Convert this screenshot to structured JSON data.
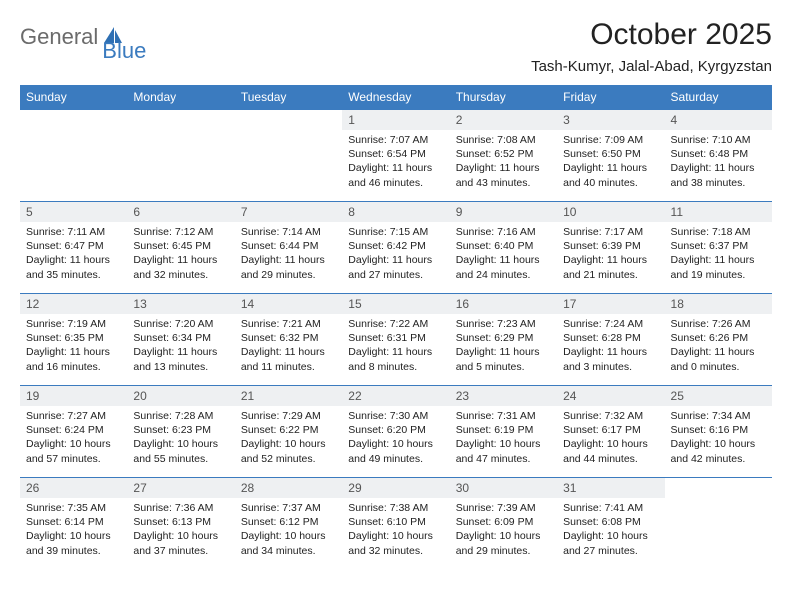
{
  "logo": {
    "word1": "General",
    "word2": "Blue"
  },
  "title": "October 2025",
  "location": "Tash-Kumyr, Jalal-Abad, Kyrgyzstan",
  "colors": {
    "header_bg": "#3b7bbf",
    "header_fg": "#ffffff",
    "daynum_bg": "#eef0f2",
    "daynum_fg": "#555555",
    "row_border": "#3b7bbf",
    "logo_gray": "#6b6b6b",
    "logo_blue": "#3b7bbf",
    "text": "#222222",
    "background": "#ffffff"
  },
  "layout": {
    "columns": 7,
    "header_fontsize": 12,
    "body_fontsize": 10.5,
    "title_fontsize": 30,
    "location_fontsize": 15
  },
  "weekdays": [
    "Sunday",
    "Monday",
    "Tuesday",
    "Wednesday",
    "Thursday",
    "Friday",
    "Saturday"
  ],
  "weeks": [
    [
      null,
      null,
      null,
      {
        "n": "1",
        "sunrise": "7:07 AM",
        "sunset": "6:54 PM",
        "daylight": "11 hours and 46 minutes."
      },
      {
        "n": "2",
        "sunrise": "7:08 AM",
        "sunset": "6:52 PM",
        "daylight": "11 hours and 43 minutes."
      },
      {
        "n": "3",
        "sunrise": "7:09 AM",
        "sunset": "6:50 PM",
        "daylight": "11 hours and 40 minutes."
      },
      {
        "n": "4",
        "sunrise": "7:10 AM",
        "sunset": "6:48 PM",
        "daylight": "11 hours and 38 minutes."
      }
    ],
    [
      {
        "n": "5",
        "sunrise": "7:11 AM",
        "sunset": "6:47 PM",
        "daylight": "11 hours and 35 minutes."
      },
      {
        "n": "6",
        "sunrise": "7:12 AM",
        "sunset": "6:45 PM",
        "daylight": "11 hours and 32 minutes."
      },
      {
        "n": "7",
        "sunrise": "7:14 AM",
        "sunset": "6:44 PM",
        "daylight": "11 hours and 29 minutes."
      },
      {
        "n": "8",
        "sunrise": "7:15 AM",
        "sunset": "6:42 PM",
        "daylight": "11 hours and 27 minutes."
      },
      {
        "n": "9",
        "sunrise": "7:16 AM",
        "sunset": "6:40 PM",
        "daylight": "11 hours and 24 minutes."
      },
      {
        "n": "10",
        "sunrise": "7:17 AM",
        "sunset": "6:39 PM",
        "daylight": "11 hours and 21 minutes."
      },
      {
        "n": "11",
        "sunrise": "7:18 AM",
        "sunset": "6:37 PM",
        "daylight": "11 hours and 19 minutes."
      }
    ],
    [
      {
        "n": "12",
        "sunrise": "7:19 AM",
        "sunset": "6:35 PM",
        "daylight": "11 hours and 16 minutes."
      },
      {
        "n": "13",
        "sunrise": "7:20 AM",
        "sunset": "6:34 PM",
        "daylight": "11 hours and 13 minutes."
      },
      {
        "n": "14",
        "sunrise": "7:21 AM",
        "sunset": "6:32 PM",
        "daylight": "11 hours and 11 minutes."
      },
      {
        "n": "15",
        "sunrise": "7:22 AM",
        "sunset": "6:31 PM",
        "daylight": "11 hours and 8 minutes."
      },
      {
        "n": "16",
        "sunrise": "7:23 AM",
        "sunset": "6:29 PM",
        "daylight": "11 hours and 5 minutes."
      },
      {
        "n": "17",
        "sunrise": "7:24 AM",
        "sunset": "6:28 PM",
        "daylight": "11 hours and 3 minutes."
      },
      {
        "n": "18",
        "sunrise": "7:26 AM",
        "sunset": "6:26 PM",
        "daylight": "11 hours and 0 minutes."
      }
    ],
    [
      {
        "n": "19",
        "sunrise": "7:27 AM",
        "sunset": "6:24 PM",
        "daylight": "10 hours and 57 minutes."
      },
      {
        "n": "20",
        "sunrise": "7:28 AM",
        "sunset": "6:23 PM",
        "daylight": "10 hours and 55 minutes."
      },
      {
        "n": "21",
        "sunrise": "7:29 AM",
        "sunset": "6:22 PM",
        "daylight": "10 hours and 52 minutes."
      },
      {
        "n": "22",
        "sunrise": "7:30 AM",
        "sunset": "6:20 PM",
        "daylight": "10 hours and 49 minutes."
      },
      {
        "n": "23",
        "sunrise": "7:31 AM",
        "sunset": "6:19 PM",
        "daylight": "10 hours and 47 minutes."
      },
      {
        "n": "24",
        "sunrise": "7:32 AM",
        "sunset": "6:17 PM",
        "daylight": "10 hours and 44 minutes."
      },
      {
        "n": "25",
        "sunrise": "7:34 AM",
        "sunset": "6:16 PM",
        "daylight": "10 hours and 42 minutes."
      }
    ],
    [
      {
        "n": "26",
        "sunrise": "7:35 AM",
        "sunset": "6:14 PM",
        "daylight": "10 hours and 39 minutes."
      },
      {
        "n": "27",
        "sunrise": "7:36 AM",
        "sunset": "6:13 PM",
        "daylight": "10 hours and 37 minutes."
      },
      {
        "n": "28",
        "sunrise": "7:37 AM",
        "sunset": "6:12 PM",
        "daylight": "10 hours and 34 minutes."
      },
      {
        "n": "29",
        "sunrise": "7:38 AM",
        "sunset": "6:10 PM",
        "daylight": "10 hours and 32 minutes."
      },
      {
        "n": "30",
        "sunrise": "7:39 AM",
        "sunset": "6:09 PM",
        "daylight": "10 hours and 29 minutes."
      },
      {
        "n": "31",
        "sunrise": "7:41 AM",
        "sunset": "6:08 PM",
        "daylight": "10 hours and 27 minutes."
      },
      null
    ]
  ],
  "labels": {
    "sunrise": "Sunrise:",
    "sunset": "Sunset:",
    "daylight": "Daylight:"
  }
}
